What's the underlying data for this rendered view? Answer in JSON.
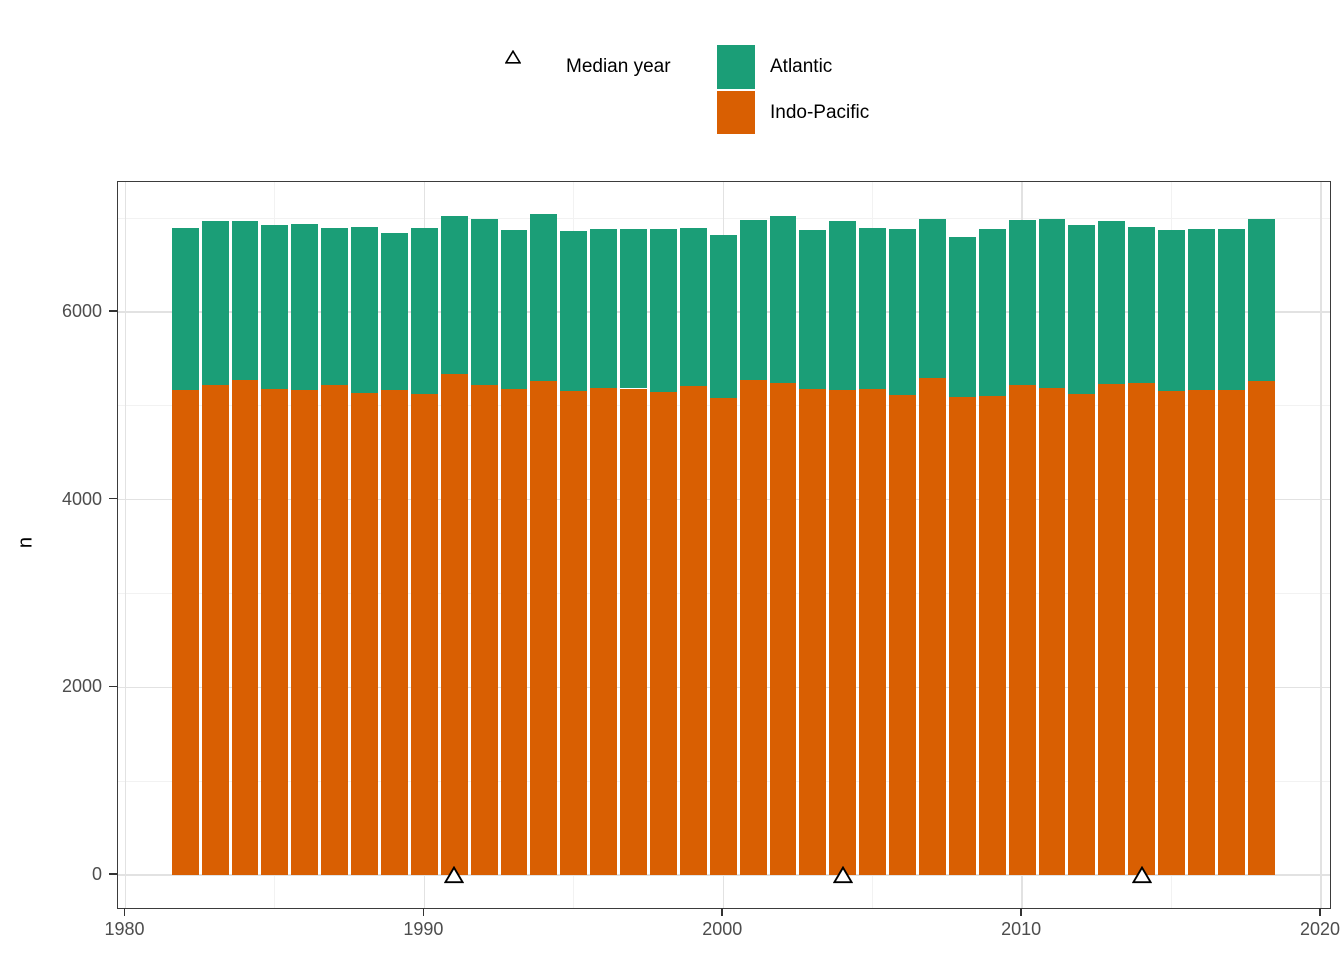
{
  "legend": {
    "shape": {
      "symbol": "open-triangle",
      "label": "Median year"
    },
    "fill": {
      "items": [
        {
          "label": "Atlantic",
          "color": "#1B9E77"
        },
        {
          "label": "Indo-Pacific",
          "color": "#D95F02"
        }
      ]
    }
  },
  "axes": {
    "x": {
      "tick_labels": [
        "1980",
        "1990",
        "2000",
        "2010",
        "2020"
      ]
    },
    "y": {
      "title": "n",
      "tick_labels": [
        "0",
        "2000",
        "4000",
        "6000"
      ]
    }
  },
  "chart_data": {
    "type": "bar",
    "stacked": true,
    "title": "",
    "xlabel": "",
    "ylabel": "n",
    "categories": [
      1982,
      1983,
      1984,
      1985,
      1986,
      1987,
      1988,
      1989,
      1990,
      1991,
      1992,
      1993,
      1994,
      1995,
      1996,
      1997,
      1998,
      1999,
      2000,
      2001,
      2002,
      2003,
      2004,
      2005,
      2006,
      2007,
      2008,
      2009,
      2010,
      2011,
      2012,
      2013,
      2014,
      2015,
      2016,
      2017,
      2018
    ],
    "series": [
      {
        "name": "Indo-Pacific",
        "color": "#D95F02",
        "values": [
          5170,
          5220,
          5280,
          5175,
          5170,
          5220,
          5135,
          5165,
          5125,
          5340,
          5220,
          5175,
          5260,
          5160,
          5195,
          5185,
          5145,
          5210,
          5085,
          5280,
          5240,
          5175,
          5165,
          5175,
          5115,
          5300,
          5095,
          5110,
          5220,
          5190,
          5125,
          5230,
          5245,
          5155,
          5170,
          5170,
          5260
        ]
      },
      {
        "name": "Atlantic",
        "color": "#1B9E77",
        "values": [
          1730,
          1750,
          1690,
          1750,
          1765,
          1680,
          1775,
          1680,
          1770,
          1680,
          1775,
          1695,
          1790,
          1700,
          1695,
          1705,
          1735,
          1685,
          1735,
          1700,
          1780,
          1695,
          1805,
          1720,
          1770,
          1695,
          1700,
          1780,
          1760,
          1800,
          1805,
          1740,
          1665,
          1720,
          1720,
          1720,
          1735
        ]
      }
    ],
    "markers": {
      "name": "Median year",
      "shape": "open-triangle",
      "years": [
        1991,
        2004,
        2014
      ],
      "y": 0
    },
    "bar_width": 0.9,
    "x_domain": [
      1979.75,
      2020.3
    ],
    "y_domain": [
      -352,
      7386
    ],
    "x_ticks": [
      1980,
      1990,
      2000,
      2010,
      2020
    ],
    "y_ticks": [
      0,
      2000,
      4000,
      6000
    ],
    "x_minor": [
      1985,
      1995,
      2005,
      2015
    ],
    "y_minor": [
      1000,
      3000,
      5000,
      7000
    ],
    "grid": true,
    "legend_position": "top"
  },
  "colors": {
    "atlantic": "#1B9E77",
    "indo_pacific": "#D95F02",
    "panel_border": "#3b3b3b",
    "grid_major": "#e2e2e2",
    "grid_minor": "#f2f2f2",
    "tick_text": "#4d4d4d"
  }
}
